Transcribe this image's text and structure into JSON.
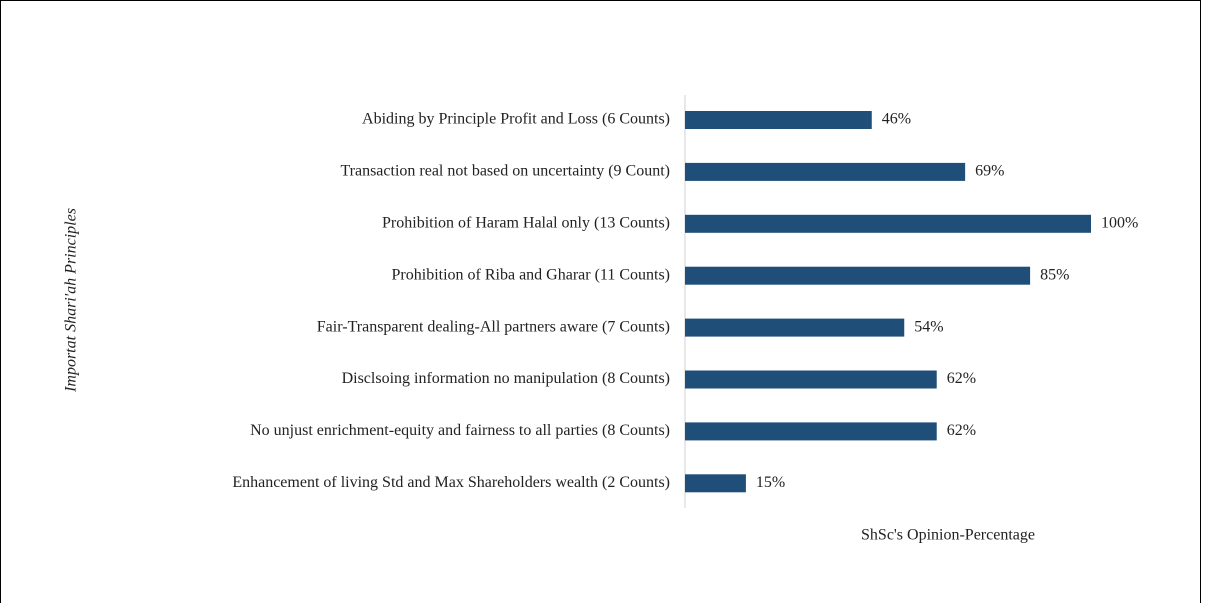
{
  "chart_data": {
    "type": "bar",
    "orientation": "horizontal",
    "ylabel": "Importat Shari'ah Principles",
    "xlabel": "ShSc's Opinion-Percentage",
    "categories": [
      "Abiding by Principle Profit and Loss (6 Counts)",
      "Transaction real not based on uncertainty (9 Count)",
      "Prohibition of Haram Halal only (13 Counts)",
      "Prohibition of Riba and Gharar (11 Counts)",
      "Fair-Transparent dealing-All partners aware (7 Counts)",
      "Disclsoing information no manipulation (8 Counts)",
      "No unjust enrichment-equity and fairness to all parties (8 Counts)",
      "Enhancement of living Std and Max Shareholders wealth (2 Counts)"
    ],
    "values": [
      46,
      69,
      100,
      85,
      54,
      62,
      62,
      15
    ],
    "value_labels": [
      "46%",
      "69%",
      "100%",
      "85%",
      "54%",
      "62%",
      "62%",
      "15%"
    ],
    "color": "#1f4e79",
    "xlim": [
      0,
      100
    ]
  }
}
